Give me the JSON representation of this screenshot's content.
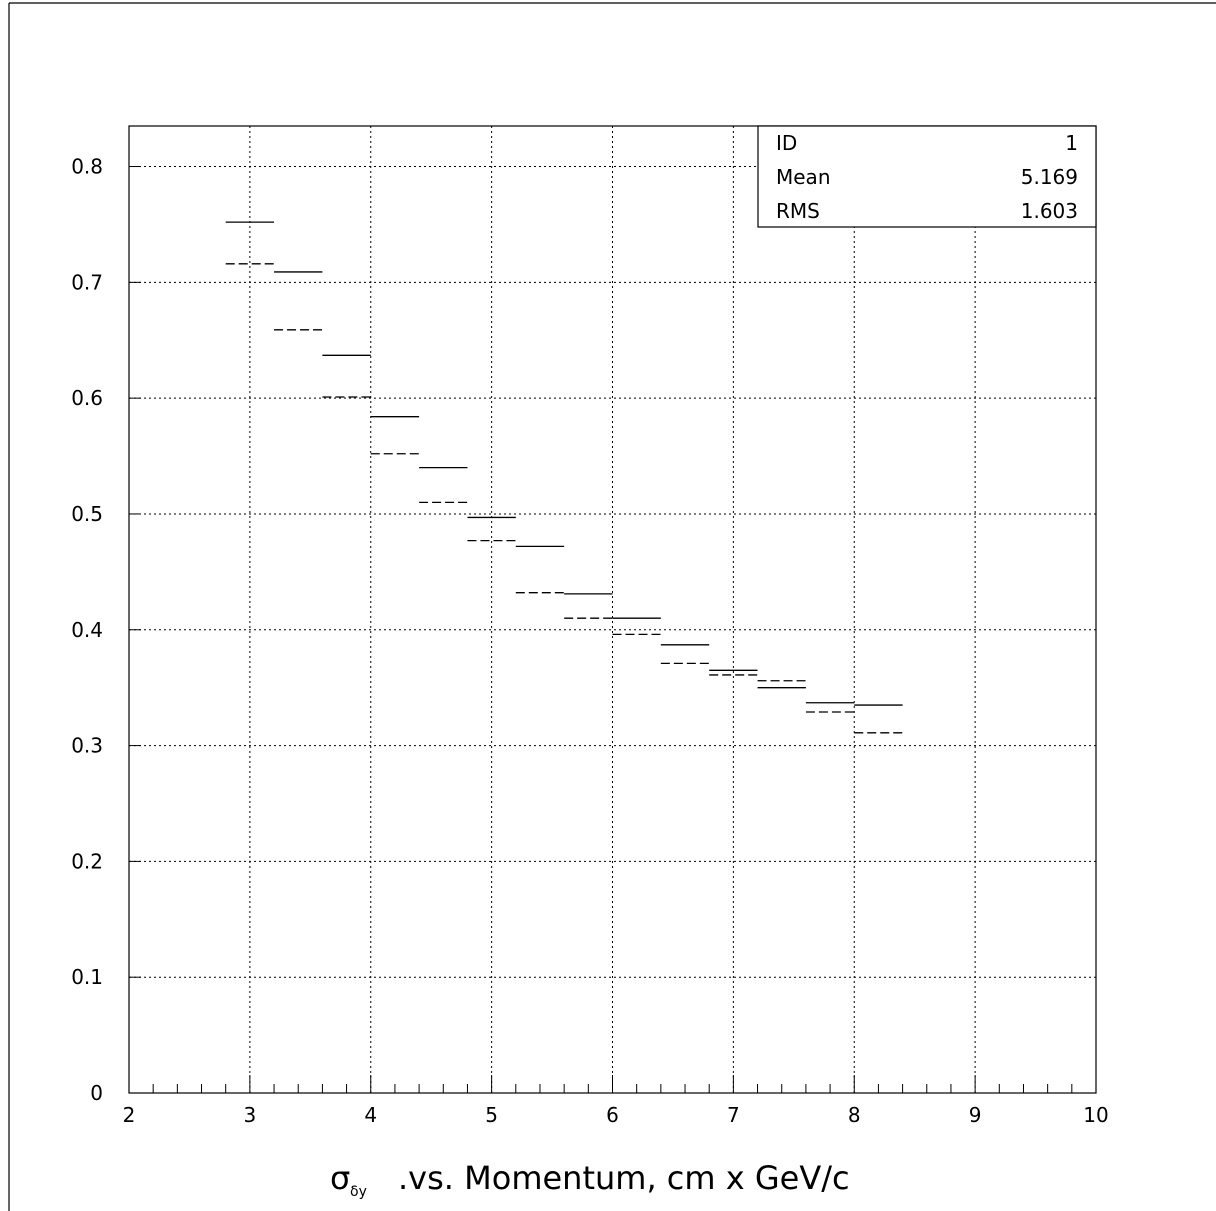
{
  "chart_data": {
    "type": "step-histogram",
    "xlabel": {
      "symbol": "σ",
      "subscript": "δy",
      "text": ".vs. Momentum, cm x GeV/c"
    },
    "ylabel": "",
    "xlim": [
      2,
      10
    ],
    "ylim": [
      0,
      0.835
    ],
    "xticks": [
      2,
      3,
      4,
      5,
      6,
      7,
      8,
      9,
      10
    ],
    "yticks": [
      0,
      0.1,
      0.2,
      0.3,
      0.4,
      0.5,
      0.6,
      0.7,
      0.8
    ],
    "xtick_labels": [
      "2",
      "3",
      "4",
      "5",
      "6",
      "7",
      "8",
      "9",
      "10"
    ],
    "ytick_labels": [
      "0",
      "0.1",
      "0.2",
      "0.3",
      "0.4",
      "0.5",
      "0.6",
      "0.7",
      "0.8"
    ],
    "grid": true,
    "bin_width": 0.4,
    "series": [
      {
        "style": "solid",
        "bins": [
          {
            "x": 2.8,
            "y": 0.752
          },
          {
            "x": 3.2,
            "y": 0.709
          },
          {
            "x": 3.6,
            "y": 0.637
          },
          {
            "x": 4.0,
            "y": 0.584
          },
          {
            "x": 4.4,
            "y": 0.54
          },
          {
            "x": 4.8,
            "y": 0.497
          },
          {
            "x": 5.2,
            "y": 0.472
          },
          {
            "x": 5.6,
            "y": 0.431
          },
          {
            "x": 6.0,
            "y": 0.41
          },
          {
            "x": 6.4,
            "y": 0.387
          },
          {
            "x": 6.8,
            "y": 0.365
          },
          {
            "x": 7.2,
            "y": 0.35
          },
          {
            "x": 7.6,
            "y": 0.337
          },
          {
            "x": 8.0,
            "y": 0.335
          }
        ]
      },
      {
        "style": "dashed",
        "bins": [
          {
            "x": 2.8,
            "y": 0.716
          },
          {
            "x": 3.2,
            "y": 0.659
          },
          {
            "x": 3.6,
            "y": 0.601
          },
          {
            "x": 4.0,
            "y": 0.552
          },
          {
            "x": 4.4,
            "y": 0.51
          },
          {
            "x": 4.8,
            "y": 0.477
          },
          {
            "x": 5.2,
            "y": 0.432
          },
          {
            "x": 5.6,
            "y": 0.41
          },
          {
            "x": 6.0,
            "y": 0.396
          },
          {
            "x": 6.4,
            "y": 0.371
          },
          {
            "x": 6.8,
            "y": 0.361
          },
          {
            "x": 7.2,
            "y": 0.356
          },
          {
            "x": 7.6,
            "y": 0.329
          },
          {
            "x": 8.0,
            "y": 0.311
          }
        ]
      }
    ],
    "stats_box": {
      "placement": "top-right",
      "rows": [
        {
          "label": "ID",
          "value": "1"
        },
        {
          "label": "Mean",
          "value": "5.169"
        },
        {
          "label": "RMS",
          "value": "1.603"
        }
      ]
    }
  }
}
